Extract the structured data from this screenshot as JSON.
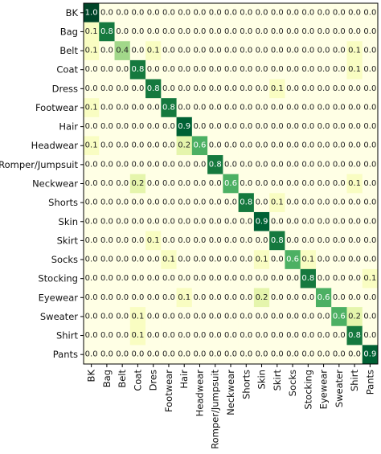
{
  "chart_data": {
    "type": "heatmap",
    "title": "",
    "xlabel": "",
    "ylabel": "",
    "row_labels": [
      "BK",
      "Bag",
      "Belt",
      "Coat",
      "Dress",
      "Footwear",
      "Hair",
      "Headwear",
      "Romper/Jumpsuit",
      "Neckwear",
      "Shorts",
      "Skin",
      "Skirt",
      "Socks",
      "Stocking",
      "Eyewear",
      "Sweater",
      "Shirt",
      "Pants"
    ],
    "col_labels": [
      "BK",
      "Bag",
      "Belt",
      "Coat",
      "Dres",
      "Footwear",
      "Hair",
      "Headwear",
      "Romper/Jumpsuit",
      "Neckwear",
      "Shorts",
      "Skin",
      "Skirt",
      "Socks",
      "Stocking",
      "Eyewear",
      "Sweater",
      "Shirt",
      "Pants"
    ],
    "values": [
      [
        1.0,
        0.0,
        0.0,
        0.0,
        0.0,
        0.0,
        0.0,
        0.0,
        0.0,
        0.0,
        0.0,
        0.0,
        0.0,
        0.0,
        0.0,
        0.0,
        0.0,
        0.0,
        0.0
      ],
      [
        0.1,
        0.8,
        0.0,
        0.0,
        0.0,
        0.0,
        0.0,
        0.0,
        0.0,
        0.0,
        0.0,
        0.0,
        0.0,
        0.0,
        0.0,
        0.0,
        0.0,
        0.0,
        0.0
      ],
      [
        0.1,
        0.0,
        0.4,
        0.0,
        0.1,
        0.0,
        0.0,
        0.0,
        0.0,
        0.0,
        0.0,
        0.0,
        0.0,
        0.0,
        0.0,
        0.0,
        0.0,
        0.1,
        0.0
      ],
      [
        0.0,
        0.0,
        0.0,
        0.8,
        0.0,
        0.0,
        0.0,
        0.0,
        0.0,
        0.0,
        0.0,
        0.0,
        0.0,
        0.0,
        0.0,
        0.0,
        0.0,
        0.1,
        0.0
      ],
      [
        0.0,
        0.0,
        0.0,
        0.0,
        0.8,
        0.0,
        0.0,
        0.0,
        0.0,
        0.0,
        0.0,
        0.0,
        0.1,
        0.0,
        0.0,
        0.0,
        0.0,
        0.0,
        0.0
      ],
      [
        0.1,
        0.0,
        0.0,
        0.0,
        0.0,
        0.8,
        0.0,
        0.0,
        0.0,
        0.0,
        0.0,
        0.0,
        0.0,
        0.0,
        0.0,
        0.0,
        0.0,
        0.0,
        0.0
      ],
      [
        0.0,
        0.0,
        0.0,
        0.0,
        0.0,
        0.0,
        0.9,
        0.0,
        0.0,
        0.0,
        0.0,
        0.0,
        0.0,
        0.0,
        0.0,
        0.0,
        0.0,
        0.0,
        0.0
      ],
      [
        0.1,
        0.0,
        0.0,
        0.0,
        0.0,
        0.0,
        0.2,
        0.6,
        0.0,
        0.0,
        0.0,
        0.0,
        0.0,
        0.0,
        0.0,
        0.0,
        0.0,
        0.0,
        0.0
      ],
      [
        0.0,
        0.0,
        0.0,
        0.0,
        0.0,
        0.0,
        0.0,
        0.0,
        0.8,
        0.0,
        0.0,
        0.0,
        0.0,
        0.0,
        0.0,
        0.0,
        0.0,
        0.0,
        0.0
      ],
      [
        0.0,
        0.0,
        0.0,
        0.2,
        0.0,
        0.0,
        0.0,
        0.0,
        0.0,
        0.6,
        0.0,
        0.0,
        0.0,
        0.0,
        0.0,
        0.0,
        0.0,
        0.1,
        0.0
      ],
      [
        0.0,
        0.0,
        0.0,
        0.0,
        0.0,
        0.0,
        0.0,
        0.0,
        0.0,
        0.0,
        0.8,
        0.0,
        0.1,
        0.0,
        0.0,
        0.0,
        0.0,
        0.0,
        0.0
      ],
      [
        0.0,
        0.0,
        0.0,
        0.0,
        0.0,
        0.0,
        0.0,
        0.0,
        0.0,
        0.0,
        0.0,
        0.9,
        0.0,
        0.0,
        0.0,
        0.0,
        0.0,
        0.0,
        0.0
      ],
      [
        0.0,
        0.0,
        0.0,
        0.0,
        0.1,
        0.0,
        0.0,
        0.0,
        0.0,
        0.0,
        0.0,
        0.0,
        0.8,
        0.0,
        0.0,
        0.0,
        0.0,
        0.0,
        0.0
      ],
      [
        0.0,
        0.0,
        0.0,
        0.0,
        0.0,
        0.1,
        0.0,
        0.0,
        0.0,
        0.0,
        0.0,
        0.1,
        0.0,
        0.6,
        0.1,
        0.0,
        0.0,
        0.0,
        0.0
      ],
      [
        0.0,
        0.0,
        0.0,
        0.0,
        0.0,
        0.0,
        0.0,
        0.0,
        0.0,
        0.0,
        0.0,
        0.0,
        0.0,
        0.0,
        0.8,
        0.0,
        0.0,
        0.0,
        0.1
      ],
      [
        0.0,
        0.0,
        0.0,
        0.0,
        0.0,
        0.0,
        0.1,
        0.0,
        0.0,
        0.0,
        0.0,
        0.2,
        0.0,
        0.0,
        0.0,
        0.6,
        0.0,
        0.0,
        0.0
      ],
      [
        0.0,
        0.0,
        0.0,
        0.1,
        0.0,
        0.0,
        0.0,
        0.0,
        0.0,
        0.0,
        0.0,
        0.0,
        0.0,
        0.0,
        0.0,
        0.0,
        0.6,
        0.2,
        0.0
      ],
      [
        0.0,
        0.0,
        0.0,
        0.1,
        0.0,
        0.0,
        0.0,
        0.0,
        0.0,
        0.0,
        0.0,
        0.0,
        0.0,
        0.0,
        0.0,
        0.0,
        0.0,
        0.8,
        0.0
      ],
      [
        0.0,
        0.0,
        0.0,
        0.0,
        0.0,
        0.0,
        0.0,
        0.0,
        0.0,
        0.0,
        0.0,
        0.0,
        0.0,
        0.0,
        0.0,
        0.0,
        0.0,
        0.0,
        0.9
      ]
    ],
    "value_format": "one decimal",
    "colormap": "white-to-green (YlGn)",
    "vmin": 0.0,
    "vmax": 1.0,
    "grid": false,
    "legend": "none"
  }
}
